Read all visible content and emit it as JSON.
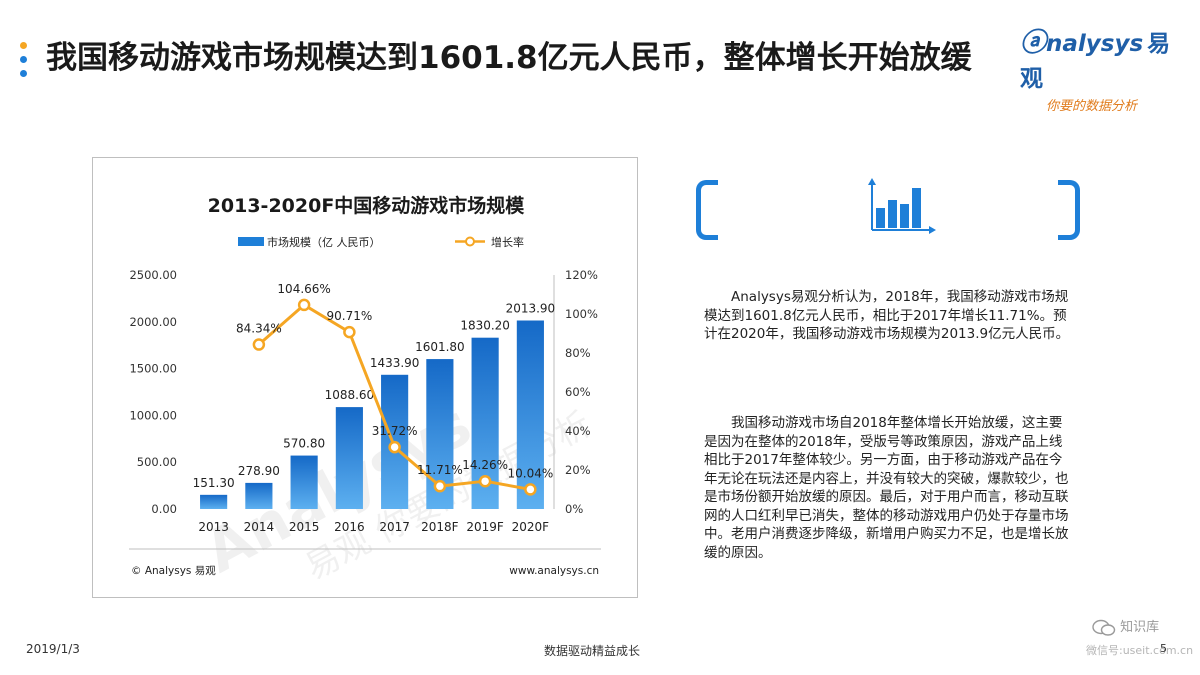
{
  "page": {
    "title": "我国移动游戏市场规模达到1601.8亿元人民币，整体增长开始放缓",
    "dot_colors": [
      "#f5a623",
      "#1e7fd8",
      "#1e7fd8"
    ],
    "logo_text": "nalysys",
    "logo_cn": "易观",
    "logo_sub": "你要的数据分析"
  },
  "chart_data": {
    "type": "bar",
    "title": "2013-2020F中国移动游戏市场规模",
    "categories": [
      "2013",
      "2014",
      "2015",
      "2016",
      "2017",
      "2018F",
      "2019F",
      "2020F"
    ],
    "series": [
      {
        "name": "市场规模（亿 人民币）",
        "type": "bar",
        "axis": "left",
        "values": [
          151.3,
          278.9,
          570.8,
          1088.6,
          1433.9,
          1601.8,
          1830.2,
          2013.9
        ],
        "labels": [
          "151.30",
          "278.90",
          "570.80",
          "1088.60",
          "1433.90",
          "1601.80",
          "1830.20",
          "2013.90"
        ],
        "color": "#1e7fd8"
      },
      {
        "name": "增长率",
        "type": "line",
        "axis": "right",
        "values": [
          null,
          84.34,
          104.66,
          90.71,
          31.72,
          11.71,
          14.26,
          10.04
        ],
        "labels": [
          null,
          "84.34%",
          "104.66%",
          "90.71%",
          "31.72%",
          "11.71%",
          "14.26%",
          "10.04%"
        ],
        "color": "#f5a623"
      }
    ],
    "ylim_left": [
      0,
      2500
    ],
    "yticks_left": [
      "0.00",
      "500.00",
      "1000.00",
      "1500.00",
      "2000.00",
      "2500.00"
    ],
    "ylim_right": [
      0,
      120
    ],
    "yticks_right": [
      "0%",
      "20%",
      "40%",
      "60%",
      "80%",
      "100%",
      "120%"
    ],
    "legend_position": "top",
    "grid": false,
    "source_left": "© Analysys 易观",
    "source_right": "www.analysys.cn",
    "watermark": "Analysys 易观 你要的数据分析"
  },
  "analysis": {
    "p1": "Analysys易观分析认为，2018年，我国移动游戏市场规模达到1601.8亿元人民币，相比于2017年增长11.71%。预计在2020年，我国移动游戏市场规模为2013.9亿元人民币。",
    "p2": "我国移动游戏市场自2018年整体增长开始放缓，这主要是因为在整体的2018年，受版号等政策原因，游戏产品上线相比于2017年整体较少。另一方面，由于移动游戏产品在今年无论在玩法还是内容上，并没有较大的突破，爆款较少，也是市场份额开始放缓的原因。最后，对于用户而言，移动互联网的人口红利早已消失，整体的移动游戏用户仍处于存量市场中。老用户消费逐步降级，新增用户购买力不足，也是增长放缓的原因。"
  },
  "footer": {
    "date": "2019/1/3",
    "slogan": "数据驱动精益成长",
    "page_number": "5",
    "badge": "知识库",
    "badge_url": "微信号:useit.com.cn"
  }
}
